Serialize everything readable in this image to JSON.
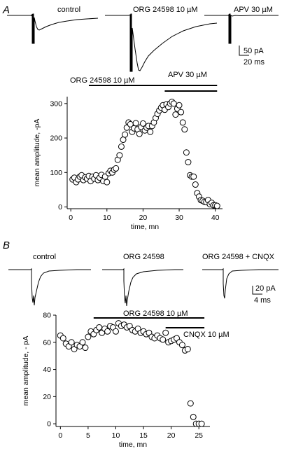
{
  "panel_a": {
    "letter": "A",
    "traces": [
      {
        "label": "control"
      },
      {
        "label": "ORG 24598 10 µM"
      },
      {
        "label": "APV 30 µM"
      }
    ],
    "scalebar": {
      "amplitude": "50 pA",
      "time": "20 ms"
    },
    "bars": [
      {
        "label": "ORG 24598 10 µM"
      },
      {
        "label": "APV 30 µM"
      }
    ]
  },
  "panel_b": {
    "letter": "B",
    "traces": [
      {
        "label": "control"
      },
      {
        "label": "ORG 24598"
      },
      {
        "label": "ORG 24598 +  CNQX"
      }
    ],
    "scalebar": {
      "amplitude": "20 pA",
      "time": "4 ms"
    },
    "bars": [
      {
        "label": "ORG 24598 10 µM"
      },
      {
        "label": "CNQX 10 µM"
      }
    ]
  },
  "chart_data": [
    {
      "type": "scatter",
      "panel": "A",
      "xlabel": "time, mn",
      "ylabel": "mean amplitude, -pA",
      "xlim": [
        -1,
        42
      ],
      "ylim": [
        -5,
        320
      ],
      "xticks": [
        0,
        10,
        20,
        30,
        40
      ],
      "yticks": [
        0,
        100,
        200,
        300
      ],
      "bars": [
        {
          "label": "ORG 24598 10 µM",
          "start": 5,
          "end": 40.5
        },
        {
          "label": "APV 30 µM",
          "start": 26,
          "end": 40.5
        }
      ],
      "x": [
        0.5,
        1,
        1.5,
        2,
        2.5,
        3,
        3.5,
        4,
        4.5,
        5,
        5.5,
        6,
        6.5,
        7,
        7.5,
        8,
        8.5,
        9,
        9.5,
        10,
        10.5,
        11,
        11.5,
        12,
        12.5,
        13,
        13.5,
        14,
        14.5,
        15,
        15.5,
        16,
        16.5,
        17,
        17.5,
        18,
        18.5,
        19,
        19.5,
        20,
        20.5,
        21,
        21.5,
        22,
        22.5,
        23,
        23.5,
        24,
        24.5,
        25,
        25.5,
        26,
        26.5,
        27,
        27.5,
        28,
        28.5,
        29,
        29.5,
        30,
        30.5,
        31,
        31.5,
        32,
        32.5,
        33,
        33.5,
        34,
        34.5,
        35,
        35.5,
        36,
        36.5,
        37,
        37.5,
        38,
        38.5,
        39,
        39.5,
        40,
        40.5
      ],
      "y": [
        80,
        85,
        72,
        80,
        88,
        92,
        78,
        86,
        82,
        90,
        75,
        88,
        82,
        92,
        78,
        85,
        93,
        75,
        88,
        72,
        98,
        105,
        100,
        108,
        112,
        137,
        150,
        175,
        195,
        210,
        230,
        245,
        240,
        218,
        228,
        243,
        225,
        212,
        232,
        242,
        222,
        230,
        235,
        218,
        235,
        245,
        258,
        270,
        280,
        288,
        295,
        282,
        298,
        290,
        300,
        305,
        300,
        268,
        285,
        295,
        275,
        245,
        225,
        158,
        130,
        92,
        88,
        88,
        65,
        40,
        30,
        20,
        18,
        15,
        14,
        20,
        8,
        12,
        5,
        5,
        3
      ]
    },
    {
      "type": "scatter",
      "panel": "B",
      "xlabel": "time, mn",
      "ylabel": "mean amplitude, - pA",
      "xlim": [
        -0.8,
        27
      ],
      "ylim": [
        -2,
        80
      ],
      "xticks": [
        0,
        5,
        10,
        15,
        20,
        25
      ],
      "yticks": [
        0,
        20,
        40,
        60,
        80
      ],
      "bars": [
        {
          "label": "ORG 24598 10 µM",
          "start": 6,
          "end": 26
        },
        {
          "label": "CNQX 10 µM",
          "start": 19,
          "end": 26
        }
      ],
      "x": [
        0,
        0.5,
        1,
        1.5,
        2,
        2.5,
        3,
        3.5,
        4,
        4.5,
        5,
        5.5,
        6,
        6.5,
        7,
        7.5,
        8,
        8.5,
        9,
        9.5,
        10,
        10.5,
        11,
        11.5,
        12,
        12.5,
        13,
        13.5,
        14,
        14.5,
        15,
        15.5,
        16,
        16.5,
        17,
        17.5,
        18,
        18.5,
        19,
        19.5,
        20,
        20.5,
        21,
        21.5,
        22,
        22.5,
        23,
        23.5,
        24,
        24.5,
        25,
        25.5
      ],
      "y": [
        65,
        63,
        59,
        57,
        60,
        55,
        58,
        57,
        60,
        56,
        64,
        68,
        66,
        69,
        71,
        67,
        70,
        68,
        72,
        71,
        68,
        74,
        72,
        73,
        71,
        72,
        69,
        68,
        70,
        67,
        68,
        66,
        67,
        64,
        63,
        65,
        63,
        62,
        67,
        60,
        61,
        62,
        63,
        60,
        58,
        54,
        55,
        15,
        5,
        0,
        0,
        0
      ]
    }
  ]
}
